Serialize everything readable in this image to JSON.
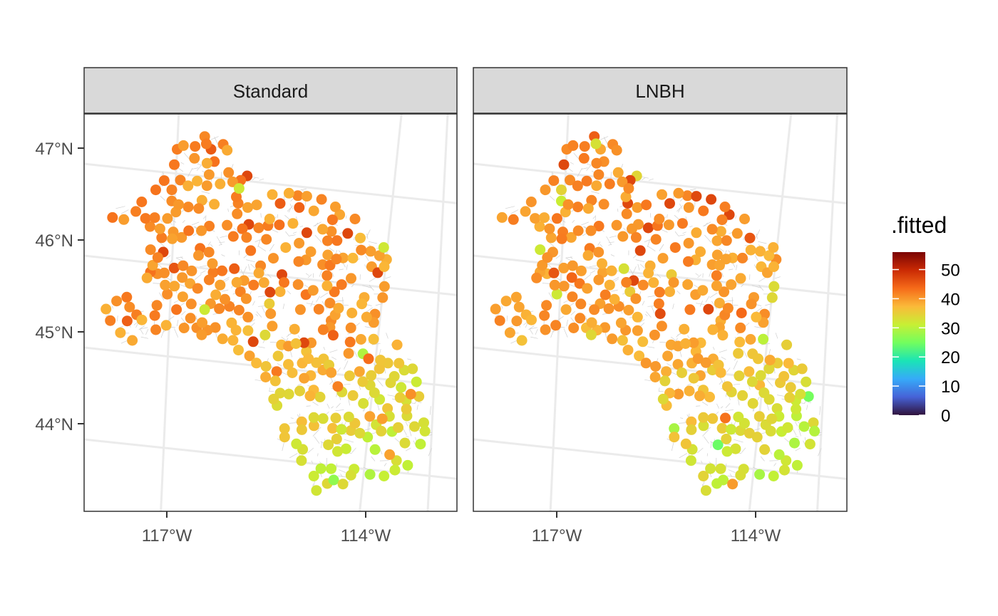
{
  "panels": [
    {
      "label": "Standard"
    },
    {
      "label": "LNBH"
    }
  ],
  "axes": {
    "y_ticks": [
      {
        "value": 47,
        "label": "47°N"
      },
      {
        "value": 46,
        "label": "46°N"
      },
      {
        "value": 45,
        "label": "45°N"
      },
      {
        "value": 44,
        "label": "44°N"
      }
    ],
    "x_ticks": [
      {
        "value": -117,
        "label": "117°W"
      },
      {
        "value": -114,
        "label": "114°W"
      }
    ]
  },
  "legend": {
    "title": ".fitted",
    "ticks": [
      "50",
      "40",
      "30",
      "20",
      "10",
      "0"
    ],
    "tick_values": [
      50,
      40,
      30,
      20,
      10,
      0
    ],
    "min": 0,
    "max": 56,
    "palette": [
      "#30123b",
      "#4662d7",
      "#36aaf9",
      "#1ae4b6",
      "#72fe5e",
      "#c7ef34",
      "#faba39",
      "#f66b19",
      "#ca2a04",
      "#7a0403"
    ]
  },
  "colors": {
    "panel_border": "#333333",
    "strip_fill": "#d9d9d9",
    "graticule": "#ebebeb",
    "streams": "#c8c8c8"
  },
  "chart_data": {
    "type": "map-scatter",
    "facets": [
      "Standard",
      "LNBH"
    ],
    "xlim": [
      -118.2,
      -112.8
    ],
    "ylim": [
      43.1,
      47.3
    ],
    "variable": ".fitted",
    "color_range": [
      0,
      56
    ],
    "approx_point_count": 330,
    "typical_values": {
      "north_west": 40,
      "central": 38,
      "south_east": 31,
      "minimum_observed": 25
    }
  }
}
